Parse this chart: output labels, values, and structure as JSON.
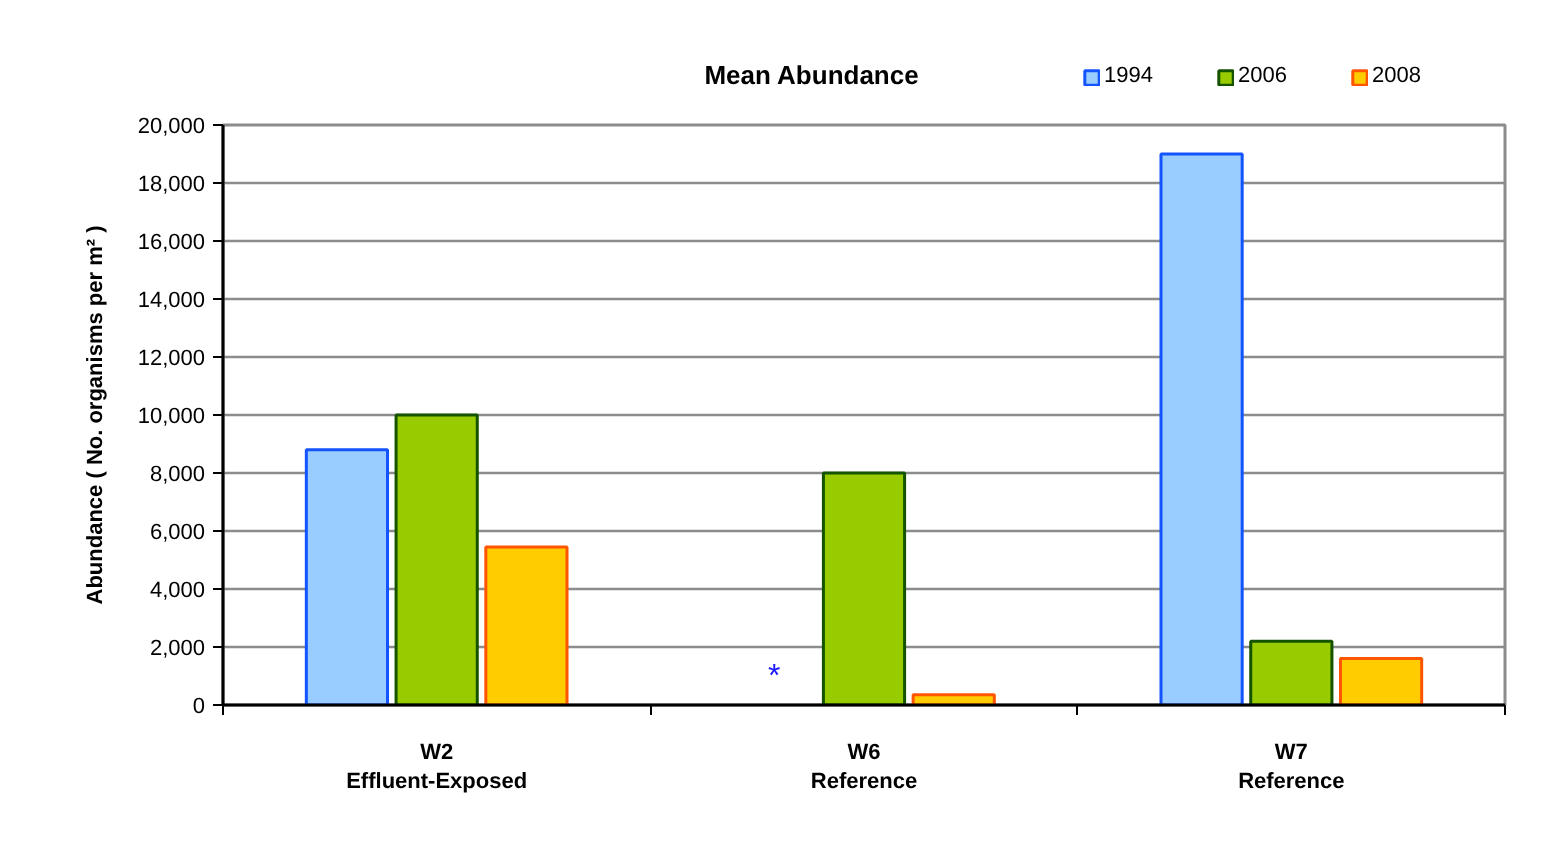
{
  "chart_data": {
    "type": "bar",
    "title": "Mean Abundance",
    "ylabel": "Abundance ( No. organisms per m² )",
    "categories": [
      "W2\nEffluent-Exposed",
      "W6\nReference",
      "W7\nReference"
    ],
    "series": [
      {
        "name": "1994",
        "color": "#99ccff",
        "values": [
          8800,
          null,
          19000
        ]
      },
      {
        "name": "2006",
        "color": "#99cc00",
        "values": [
          10000,
          8000,
          2200
        ]
      },
      {
        "name": "2008",
        "color": "#ffcc00",
        "values": [
          5450,
          350,
          1600
        ]
      }
    ],
    "ylim": [
      0,
      20000
    ],
    "yticks": [
      {
        "value": 0,
        "label": "0"
      },
      {
        "value": 2000,
        "label": "2,000"
      },
      {
        "value": 4000,
        "label": "4,000"
      },
      {
        "value": 6000,
        "label": "6,000"
      },
      {
        "value": 8000,
        "label": "8,000"
      },
      {
        "value": 10000,
        "label": "10,000"
      },
      {
        "value": 12000,
        "label": "12,000"
      },
      {
        "value": 14000,
        "label": "14,000"
      },
      {
        "value": 16000,
        "label": "16,000"
      },
      {
        "value": 18000,
        "label": "18,000"
      },
      {
        "value": 20000,
        "label": "20,000"
      }
    ],
    "grid": "y",
    "legend": "top right",
    "annotations": [
      "*"
    ]
  }
}
